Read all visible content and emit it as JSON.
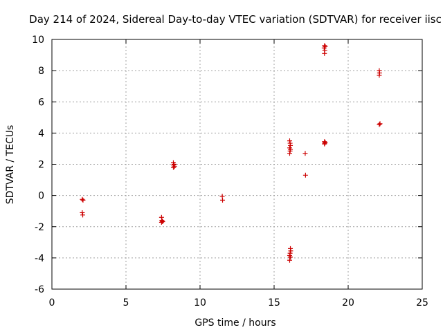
{
  "chart_data": {
    "type": "scatter",
    "title": "Day 214 of 2024, Sidereal Day-to-day VTEC variation (SDTVAR) for receiver iisc",
    "xlabel": "GPS time / hours",
    "ylabel": "SDTVAR / TECUs",
    "xlim": [
      0,
      25
    ],
    "ylim": [
      -6,
      10
    ],
    "xticks": [
      0,
      5,
      10,
      15,
      20,
      25
    ],
    "yticks": [
      -6,
      -4,
      -2,
      0,
      2,
      4,
      6,
      8,
      10
    ],
    "grid": true,
    "marker": "+",
    "colors": {
      "points": "#cc0000",
      "grid": "#a0a0a0",
      "axes": "#000000"
    },
    "series": [
      {
        "name": "SDTVAR",
        "points": [
          {
            "x": 2.05,
            "y": -0.25
          },
          {
            "x": 2.1,
            "y": -0.3
          },
          {
            "x": 2.05,
            "y": -1.1
          },
          {
            "x": 2.08,
            "y": -1.25
          },
          {
            "x": 7.4,
            "y": -1.4
          },
          {
            "x": 7.42,
            "y": -1.6
          },
          {
            "x": 7.45,
            "y": -1.65
          },
          {
            "x": 7.4,
            "y": -1.72
          },
          {
            "x": 7.48,
            "y": -1.68
          },
          {
            "x": 8.2,
            "y": 2.1
          },
          {
            "x": 8.25,
            "y": 2.0
          },
          {
            "x": 8.22,
            "y": 1.95
          },
          {
            "x": 8.28,
            "y": 1.85
          },
          {
            "x": 8.2,
            "y": 1.8
          },
          {
            "x": 11.5,
            "y": -0.05
          },
          {
            "x": 11.52,
            "y": -0.3
          },
          {
            "x": 16.05,
            "y": 3.5
          },
          {
            "x": 16.08,
            "y": 3.35
          },
          {
            "x": 16.1,
            "y": 3.2
          },
          {
            "x": 16.05,
            "y": 3.05
          },
          {
            "x": 16.1,
            "y": 2.95
          },
          {
            "x": 16.08,
            "y": 2.85
          },
          {
            "x": 16.05,
            "y": 2.7
          },
          {
            "x": 16.1,
            "y": -3.4
          },
          {
            "x": 16.12,
            "y": -3.55
          },
          {
            "x": 16.08,
            "y": -3.7
          },
          {
            "x": 16.05,
            "y": -3.85
          },
          {
            "x": 16.1,
            "y": -3.95
          },
          {
            "x": 16.05,
            "y": -4.15
          },
          {
            "x": 17.1,
            "y": 2.7
          },
          {
            "x": 17.12,
            "y": 1.3
          },
          {
            "x": 18.4,
            "y": 9.6
          },
          {
            "x": 18.45,
            "y": 9.55
          },
          {
            "x": 18.38,
            "y": 9.45
          },
          {
            "x": 18.42,
            "y": 9.3
          },
          {
            "x": 18.4,
            "y": 9.1
          },
          {
            "x": 18.4,
            "y": 3.45
          },
          {
            "x": 18.45,
            "y": 3.4
          },
          {
            "x": 18.42,
            "y": 3.35
          },
          {
            "x": 18.4,
            "y": 3.3
          },
          {
            "x": 22.1,
            "y": 8.0
          },
          {
            "x": 22.12,
            "y": 7.85
          },
          {
            "x": 22.1,
            "y": 7.7
          },
          {
            "x": 22.15,
            "y": 4.6
          },
          {
            "x": 22.1,
            "y": 4.55
          }
        ]
      }
    ]
  }
}
